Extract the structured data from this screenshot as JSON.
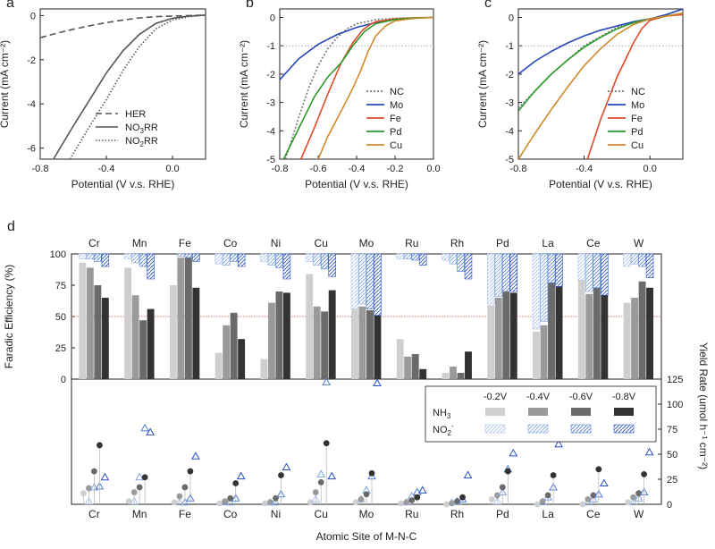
{
  "chart_data": [
    {
      "type": "line",
      "panel": "a",
      "xlabel": "Potential (V v.s. RHE)",
      "ylabel": "Current (mA cm⁻²)",
      "xlim": [
        -0.8,
        0.2
      ],
      "ylim": [
        -6.5,
        0.3
      ],
      "xticks": [
        "-0.8",
        "-0.4",
        "0.0"
      ],
      "yticks": [
        "0",
        "-2",
        "-4",
        "-6"
      ],
      "legend": [
        {
          "name": "HER",
          "style": "dashed",
          "color": "#555555"
        },
        {
          "name": "NO3RR",
          "sub": "3",
          "base": "NO",
          "tail": "RR",
          "style": "solid",
          "color": "#555555"
        },
        {
          "name": "NO2RR",
          "sub": "2",
          "base": "NO",
          "tail": "RR",
          "style": "dotted",
          "color": "#555555"
        }
      ],
      "series": [
        {
          "name": "HER",
          "x": [
            -0.8,
            -0.7,
            -0.6,
            -0.5,
            -0.4,
            -0.3,
            -0.2,
            -0.1,
            0.0,
            0.1,
            0.2
          ],
          "y": [
            -1.0,
            -0.8,
            -0.62,
            -0.46,
            -0.32,
            -0.2,
            -0.11,
            -0.05,
            -0.02,
            0.0,
            0.02
          ]
        },
        {
          "name": "NO3RR",
          "x": [
            -0.72,
            -0.6,
            -0.5,
            -0.4,
            -0.3,
            -0.2,
            -0.1,
            0.0,
            0.1,
            0.2
          ],
          "y": [
            -6.5,
            -5.0,
            -3.8,
            -2.6,
            -1.6,
            -0.85,
            -0.35,
            -0.12,
            -0.02,
            0.02
          ]
        },
        {
          "name": "NO2RR",
          "x": [
            -0.62,
            -0.5,
            -0.4,
            -0.3,
            -0.2,
            -0.1,
            0.0,
            0.1,
            0.2
          ],
          "y": [
            -6.5,
            -5.0,
            -3.8,
            -2.5,
            -1.4,
            -0.6,
            -0.2,
            -0.05,
            0.02
          ]
        }
      ]
    },
    {
      "type": "line",
      "panel": "b",
      "xlabel": "Potential (V v.s. RHE)",
      "ylabel": "Current (mA cm⁻²)",
      "xlim": [
        -0.8,
        0.0
      ],
      "ylim": [
        -5,
        0.3
      ],
      "xticks": [
        "-0.8",
        "-0.6",
        "-0.4",
        "-0.2",
        "0.0"
      ],
      "yticks": [
        "0",
        "-1",
        "-2",
        "-3",
        "-4",
        "-5"
      ],
      "reference_line_y": -1,
      "legend": [
        "NC",
        "Mo",
        "Fe",
        "Pd",
        "Cu"
      ],
      "series": [
        {
          "name": "NC",
          "color": "#777777",
          "dash": "dotted",
          "x": [
            -0.77,
            -0.7,
            -0.65,
            -0.6,
            -0.55,
            -0.5,
            -0.45,
            -0.4,
            -0.3,
            -0.2,
            -0.1,
            0.0
          ],
          "y": [
            -5.0,
            -3.5,
            -2.5,
            -1.7,
            -1.1,
            -0.7,
            -0.4,
            -0.22,
            -0.08,
            -0.03,
            -0.01,
            0.0
          ]
        },
        {
          "name": "Mo",
          "color": "#2446b8",
          "dash": "solid",
          "x": [
            -0.8,
            -0.7,
            -0.6,
            -0.5,
            -0.4,
            -0.3,
            -0.2,
            -0.1,
            0.0
          ],
          "y": [
            -2.2,
            -1.45,
            -0.95,
            -0.6,
            -0.35,
            -0.18,
            -0.08,
            -0.03,
            0.0
          ]
        },
        {
          "name": "Fe",
          "color": "#e04a2a",
          "dash": "solid",
          "x": [
            -0.69,
            -0.62,
            -0.55,
            -0.48,
            -0.42,
            -0.37,
            -0.33,
            -0.3,
            -0.2,
            -0.1,
            0.0
          ],
          "y": [
            -5.0,
            -3.9,
            -2.7,
            -1.6,
            -0.9,
            -0.45,
            -0.25,
            -0.15,
            -0.05,
            -0.02,
            0.0
          ]
        },
        {
          "name": "Pd",
          "color": "#2a9a2a",
          "dash": "solid",
          "x": [
            -0.78,
            -0.7,
            -0.62,
            -0.55,
            -0.48,
            -0.42,
            -0.36,
            -0.3,
            -0.2,
            -0.1,
            0.0
          ],
          "y": [
            -5.0,
            -3.9,
            -2.8,
            -2.1,
            -1.6,
            -1.0,
            -0.5,
            -0.22,
            -0.07,
            -0.02,
            0.0
          ]
        },
        {
          "name": "Cu",
          "color": "#d08a2c",
          "dash": "solid",
          "x": [
            -0.6,
            -0.55,
            -0.48,
            -0.42,
            -0.38,
            -0.34,
            -0.3,
            -0.25,
            -0.2,
            -0.1,
            0.0
          ],
          "y": [
            -5.0,
            -4.2,
            -3.3,
            -2.5,
            -1.9,
            -1.2,
            -0.65,
            -0.3,
            -0.12,
            -0.03,
            0.0
          ]
        }
      ]
    },
    {
      "type": "line",
      "panel": "c",
      "xlabel": "Potential (V v.s. RHE)",
      "ylabel": "Current (mA cm⁻²)",
      "xlim": [
        -0.8,
        0.2
      ],
      "ylim": [
        -5,
        0.3
      ],
      "xticks": [
        "-0.8",
        "-0.4",
        "0.0"
      ],
      "yticks": [
        "0",
        "-1",
        "-2",
        "-3",
        "-4",
        "-5"
      ],
      "reference_line_y": -1,
      "legend": [
        "NC",
        "Mo",
        "Fe",
        "Pd",
        "Cu"
      ],
      "series": [
        {
          "name": "NC",
          "color": "#777777",
          "dash": "dotted",
          "x": [
            -0.8,
            -0.6,
            -0.4,
            -0.2,
            0.0,
            0.1,
            0.2
          ],
          "y": [
            -3.2,
            -2.0,
            -1.0,
            -0.35,
            -0.05,
            0.05,
            0.15
          ]
        },
        {
          "name": "Mo",
          "color": "#2446b8",
          "dash": "solid",
          "x": [
            -0.8,
            -0.7,
            -0.6,
            -0.5,
            -0.4,
            -0.3,
            -0.2,
            -0.1,
            0.0,
            0.1,
            0.2
          ],
          "y": [
            -2.0,
            -1.55,
            -1.2,
            -0.9,
            -0.65,
            -0.45,
            -0.3,
            -0.15,
            -0.05,
            0.1,
            0.3
          ]
        },
        {
          "name": "Fe",
          "color": "#e04a2a",
          "dash": "solid",
          "x": [
            -0.38,
            -0.3,
            -0.2,
            -0.1,
            -0.05,
            0.0,
            0.1,
            0.2
          ],
          "y": [
            -5.0,
            -3.6,
            -2.1,
            -0.9,
            -0.4,
            -0.1,
            0.05,
            0.1
          ]
        },
        {
          "name": "Pd",
          "color": "#2a9a2a",
          "dash": "solid",
          "x": [
            -0.8,
            -0.7,
            -0.6,
            -0.5,
            -0.4,
            -0.3,
            -0.2,
            -0.1,
            0.0,
            0.1,
            0.2
          ],
          "y": [
            -3.3,
            -2.6,
            -2.0,
            -1.5,
            -1.05,
            -0.7,
            -0.4,
            -0.18,
            -0.05,
            0.05,
            0.15
          ]
        },
        {
          "name": "Cu",
          "color": "#d08a2c",
          "dash": "solid",
          "x": [
            -0.8,
            -0.7,
            -0.6,
            -0.5,
            -0.4,
            -0.3,
            -0.2,
            -0.1,
            0.0,
            0.1,
            0.2
          ],
          "y": [
            -5.0,
            -4.1,
            -3.25,
            -2.45,
            -1.7,
            -1.1,
            -0.6,
            -0.25,
            -0.05,
            0.05,
            0.15
          ]
        }
      ]
    },
    {
      "type": "bar",
      "panel": "d",
      "subpanel": "faradaic-efficiency",
      "ylabel": "Faradic Efficiency (%)",
      "ylim": [
        0,
        100
      ],
      "yticks": [
        "0",
        "25",
        "50",
        "75",
        "100"
      ],
      "reference_line_y": 50,
      "categories": [
        "Cr",
        "Mn",
        "Fe",
        "Co",
        "Ni",
        "Cu",
        "Mo",
        "Ru",
        "Rh",
        "Pd",
        "La",
        "Ce",
        "W"
      ],
      "potentials": [
        "-0.2V",
        "-0.4V",
        "-0.6V",
        "-0.8V"
      ],
      "nh3_fe": [
        [
          93,
          89,
          75,
          65
        ],
        [
          89,
          67,
          47,
          56
        ],
        [
          75,
          97,
          97,
          73
        ],
        [
          21,
          43,
          53,
          32
        ],
        [
          16,
          61,
          70,
          69
        ],
        [
          84,
          58,
          54,
          71
        ],
        [
          56,
          58,
          55,
          51
        ],
        [
          32,
          18,
          20,
          8
        ],
        [
          5,
          10,
          5,
          22
        ],
        [
          59,
          65,
          70,
          69
        ],
        [
          38,
          43,
          77,
          74
        ],
        [
          79,
          68,
          73,
          67
        ],
        [
          61,
          65,
          78,
          73
        ]
      ],
      "no2_fe_hanging_from_top": [
        [
          4,
          4,
          6,
          10
        ],
        [
          4,
          7,
          10,
          20
        ],
        [
          0,
          2,
          3,
          6
        ],
        [
          8,
          9,
          6,
          10
        ],
        [
          6,
          9,
          11,
          20
        ],
        [
          6,
          9,
          12,
          18
        ],
        [
          44,
          40,
          44,
          49
        ],
        [
          4,
          4,
          5,
          9
        ],
        [
          5,
          8,
          14,
          20
        ],
        [
          40,
          34,
          30,
          30
        ],
        [
          60,
          54,
          23,
          26
        ],
        [
          21,
          30,
          27,
          33
        ],
        [
          10,
          8,
          10,
          19
        ]
      ]
    },
    {
      "type": "scatter",
      "panel": "d",
      "subpanel": "yield-rate",
      "ylabel": "Yield Rate (umol h⁻¹ cm⁻²)",
      "xlabel": "Atomic Site of M-N-C",
      "ylim": [
        0,
        125
      ],
      "yticks": [
        "0",
        "25",
        "50",
        "75",
        "100",
        "125"
      ],
      "categories": [
        "Cr",
        "Mn",
        "Fe",
        "Co",
        "Ni",
        "Cu",
        "Mo",
        "Ru",
        "Rh",
        "Pd",
        "La",
        "Ce",
        "W"
      ],
      "nh3_yield": [
        [
          11,
          16,
          33,
          59
        ],
        [
          3,
          12,
          17,
          27
        ],
        [
          2,
          8,
          17,
          33
        ],
        [
          1,
          3,
          6,
          21
        ],
        [
          1,
          2,
          6,
          29
        ],
        [
          2,
          12,
          22,
          61
        ],
        [
          2,
          5,
          10,
          31
        ],
        [
          1,
          2,
          4,
          7
        ],
        [
          0,
          1,
          3,
          7
        ],
        [
          5,
          9,
          17,
          33
        ],
        [
          0,
          3,
          9,
          29
        ],
        [
          0,
          5,
          9,
          35
        ],
        [
          2,
          7,
          11,
          30
        ]
      ],
      "no2_yield": [
        [
          3,
          17,
          18,
          27
        ],
        [
          3,
          27,
          76,
          72
        ],
        [
          2,
          2,
          6,
          48
        ],
        [
          2,
          2,
          6,
          28
        ],
        [
          2,
          2,
          10,
          37
        ],
        [
          5,
          30,
          122,
          28
        ],
        [
          5,
          14,
          28,
          121
        ],
        [
          2,
          8,
          12,
          14
        ],
        [
          2,
          3,
          5,
          29
        ],
        [
          3,
          12,
          35,
          51
        ],
        [
          2,
          7,
          17,
          60
        ],
        [
          2,
          5,
          10,
          21
        ],
        [
          2,
          6,
          12,
          52
        ]
      ],
      "legend": {
        "potentials": [
          "-0.2V",
          "-0.4V",
          "-0.6V",
          "-0.8V"
        ],
        "nh3_label": "NH3",
        "no2_label": "NO2-",
        "nh3_colors": [
          "#cfcfcf",
          "#9a9a9a",
          "#6a6a6a",
          "#333333"
        ],
        "no2_colors": [
          "#a9c4ee",
          "#7fa4e2",
          "#4f7ed6",
          "#2850c0"
        ]
      }
    }
  ],
  "panel_labels": [
    "a",
    "b",
    "c",
    "d"
  ],
  "colors": {
    "nc": "#777777",
    "mo": "#2446b8",
    "fe": "#e04a2a",
    "pd": "#2a9a2a",
    "cu": "#d08a2c",
    "reference_line": "#d9423a"
  }
}
